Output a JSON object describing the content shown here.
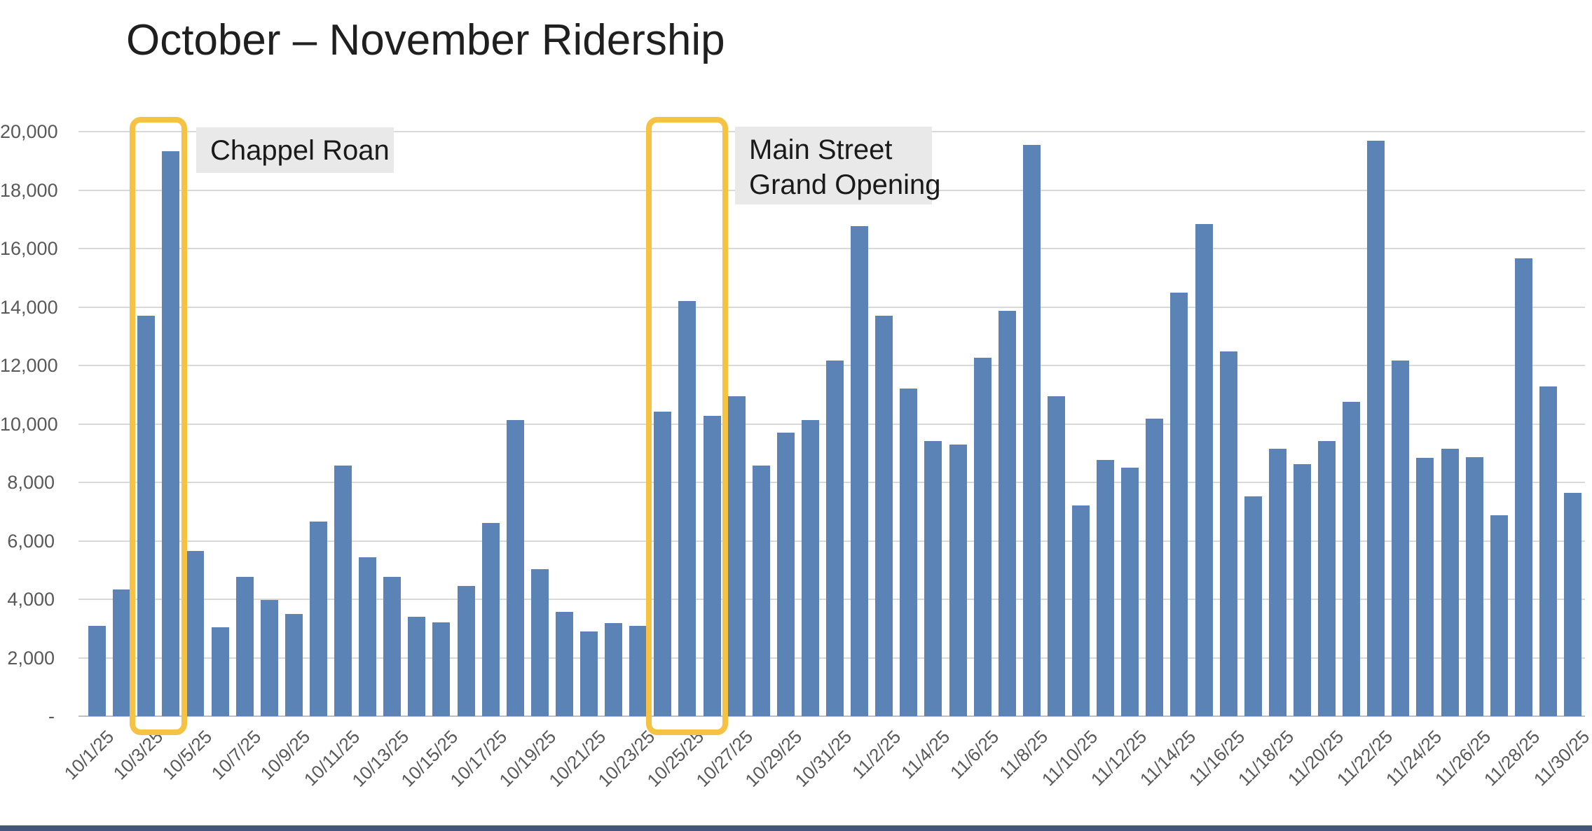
{
  "title": "October – November Ridership",
  "y_axis": {
    "tick_labels": [
      "20,000",
      "18,000",
      "16,000",
      "14,000",
      "12,000",
      "10,000",
      "8,000",
      "6,000",
      "4,000",
      "2,000",
      "-"
    ]
  },
  "x_axis": {
    "tick_labels": [
      "10/1/25",
      "10/3/25",
      "10/5/25",
      "10/7/25",
      "10/9/25",
      "10/11/25",
      "10/13/25",
      "10/15/25",
      "10/17/25",
      "10/19/25",
      "10/21/25",
      "10/23/25",
      "10/25/25",
      "10/27/25",
      "10/29/25",
      "10/31/25",
      "11/2/25",
      "11/4/25",
      "11/6/25",
      "11/8/25",
      "11/10/25",
      "11/12/25",
      "11/14/25",
      "11/16/25",
      "11/18/25",
      "11/20/25",
      "11/22/25",
      "11/24/25",
      "11/26/25",
      "11/28/25",
      "11/30/25"
    ]
  },
  "annotations": [
    {
      "lines": [
        "Chappel Roan"
      ],
      "highlight_dates": [
        "10/3/25",
        "10/4/25"
      ]
    },
    {
      "lines": [
        "Main Street",
        "Grand Opening"
      ],
      "highlight_dates": [
        "10/24/25",
        "10/25/25",
        "10/26/25"
      ]
    }
  ],
  "colors": {
    "bar": "#5b83b5",
    "highlight_stroke": "#f6c243",
    "note_background": "#e9e9e9",
    "gridline": "#d9d9d9",
    "axis_text": "#595959",
    "footer_accent": "#44567d"
  },
  "chart_data": {
    "type": "bar",
    "title": "October – November Ridership",
    "xlabel": "",
    "ylabel": "",
    "ylim": [
      0,
      20000
    ],
    "y_step": 2000,
    "grid": true,
    "legend": false,
    "x": [
      "10/1/25",
      "10/2/25",
      "10/3/25",
      "10/4/25",
      "10/5/25",
      "10/6/25",
      "10/7/25",
      "10/8/25",
      "10/9/25",
      "10/10/25",
      "10/11/25",
      "10/12/25",
      "10/13/25",
      "10/14/25",
      "10/15/25",
      "10/16/25",
      "10/17/25",
      "10/18/25",
      "10/19/25",
      "10/20/25",
      "10/21/25",
      "10/22/25",
      "10/23/25",
      "10/24/25",
      "10/25/25",
      "10/26/25",
      "10/27/25",
      "10/28/25",
      "10/29/25",
      "10/30/25",
      "10/31/25",
      "11/1/25",
      "11/2/25",
      "11/3/25",
      "11/4/25",
      "11/5/25",
      "11/6/25",
      "11/7/25",
      "11/8/25",
      "11/9/25",
      "11/10/25",
      "11/11/25",
      "11/12/25",
      "11/13/25",
      "11/14/25",
      "11/15/25",
      "11/16/25",
      "11/17/25",
      "11/18/25",
      "11/19/25",
      "11/20/25",
      "11/21/25",
      "11/22/25",
      "11/23/25",
      "11/24/25",
      "11/25/25",
      "11/26/25",
      "11/27/25",
      "11/28/25",
      "11/29/25",
      "11/30/25"
    ],
    "values": [
      3100,
      4340,
      13700,
      19330,
      5650,
      3030,
      4760,
      3970,
      3490,
      6650,
      8580,
      5440,
      4760,
      3390,
      3200,
      4450,
      6610,
      10140,
      5020,
      3570,
      2890,
      3180,
      3080,
      10410,
      14210,
      10270,
      10950,
      8580,
      9690,
      10140,
      12170,
      16760,
      13690,
      11200,
      9420,
      9300,
      12270,
      13860,
      19540,
      10940,
      7210,
      8770,
      8500,
      10180,
      14490,
      16830,
      12490,
      7520,
      9150,
      8630,
      9420,
      10750,
      19700,
      12170,
      8850,
      9150,
      8860,
      6880,
      15670,
      11290,
      7630
    ],
    "highlights": [
      {
        "label": "Chappel Roan",
        "bar_indexes": [
          2,
          3
        ]
      },
      {
        "label": "Main Street Grand Opening",
        "bar_indexes": [
          23,
          25
        ]
      }
    ]
  }
}
